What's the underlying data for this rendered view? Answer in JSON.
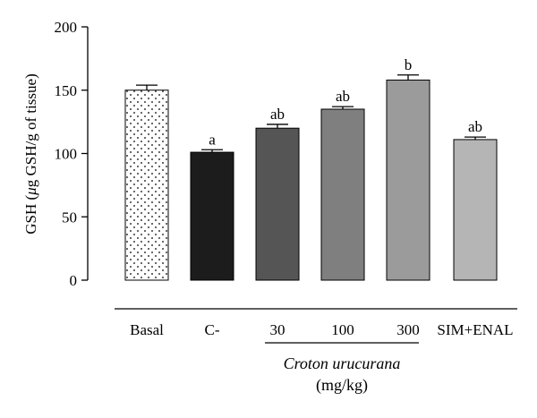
{
  "chart_data": {
    "type": "bar",
    "ylabel_prefix": "GSH (",
    "ylabel_mu": "μ",
    "ylabel_suffix": "g GSH/g of tissue)",
    "ylim": [
      0,
      200
    ],
    "yticks": [
      "0",
      "50",
      "100",
      "150",
      "200"
    ],
    "categories": [
      "Basal",
      "C-",
      "30",
      "100",
      "300",
      "SIM+ENAL"
    ],
    "values": [
      150,
      101,
      120,
      135,
      158,
      111
    ],
    "errors": [
      4,
      2,
      3,
      2,
      4,
      2
    ],
    "significance": [
      "",
      "a",
      "ab",
      "ab",
      "b",
      "ab"
    ],
    "fills": [
      "#ffffff",
      "#1c1c1c",
      "#555555",
      "#7f7f7f",
      "#9b9b9b",
      "#b5b5b5"
    ],
    "patterns": [
      "dots",
      "",
      "",
      "",
      "",
      ""
    ],
    "group_label_italic": "Croton urucurana",
    "group_label_unit": "(mg/kg)",
    "grid": false
  }
}
